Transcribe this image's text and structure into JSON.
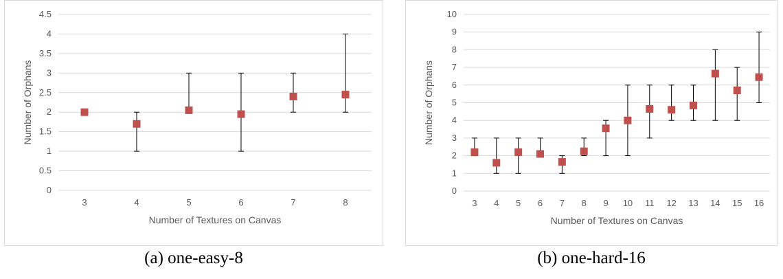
{
  "chart_data": [
    {
      "type": "scatter",
      "ylabel": "Number of Orphans",
      "xlabel": "Number of Textures on Canvas",
      "categories": [
        "3",
        "4",
        "5",
        "6",
        "7",
        "8"
      ],
      "ylim": [
        0,
        4.5
      ],
      "yticks": [
        "0",
        "0.5",
        "1",
        "1.5",
        "2",
        "2.5",
        "3",
        "3.5",
        "4",
        "4.5"
      ],
      "series": [
        {
          "values": [
            2.0,
            1.7,
            2.05,
            1.95,
            2.4,
            2.45
          ],
          "error_min": [
            2,
            1,
            2,
            1,
            2,
            2
          ],
          "error_max": [
            2,
            2,
            3,
            3,
            3,
            4
          ]
        }
      ],
      "grid": true,
      "legend": "none"
    },
    {
      "type": "scatter",
      "ylabel": "Number of Orphans",
      "xlabel": "Number of Textures on Canvas",
      "categories": [
        "3",
        "4",
        "5",
        "6",
        "7",
        "8",
        "9",
        "10",
        "11",
        "12",
        "13",
        "14",
        "15",
        "16"
      ],
      "ylim": [
        0,
        10
      ],
      "yticks": [
        "0",
        "1",
        "2",
        "3",
        "4",
        "5",
        "6",
        "7",
        "8",
        "9",
        "10"
      ],
      "series": [
        {
          "values": [
            2.2,
            1.6,
            2.2,
            2.1,
            1.65,
            2.25,
            3.55,
            4.0,
            4.65,
            4.6,
            4.85,
            6.65,
            5.7,
            6.45
          ],
          "error_min": [
            2,
            1,
            1,
            2,
            1,
            2,
            2,
            2,
            3,
            4,
            4,
            4,
            4,
            5
          ],
          "error_max": [
            3,
            3,
            3,
            3,
            2,
            3,
            4,
            6,
            6,
            6,
            6,
            8,
            7,
            9
          ]
        }
      ],
      "grid": true,
      "legend": "none"
    }
  ],
  "captions": [
    "(a) one-easy-8",
    "(b) one-hard-16"
  ],
  "colors": {
    "marker": "#c0504d",
    "grid": "#d9d9d9",
    "error": "#000000",
    "text": "#595959"
  }
}
